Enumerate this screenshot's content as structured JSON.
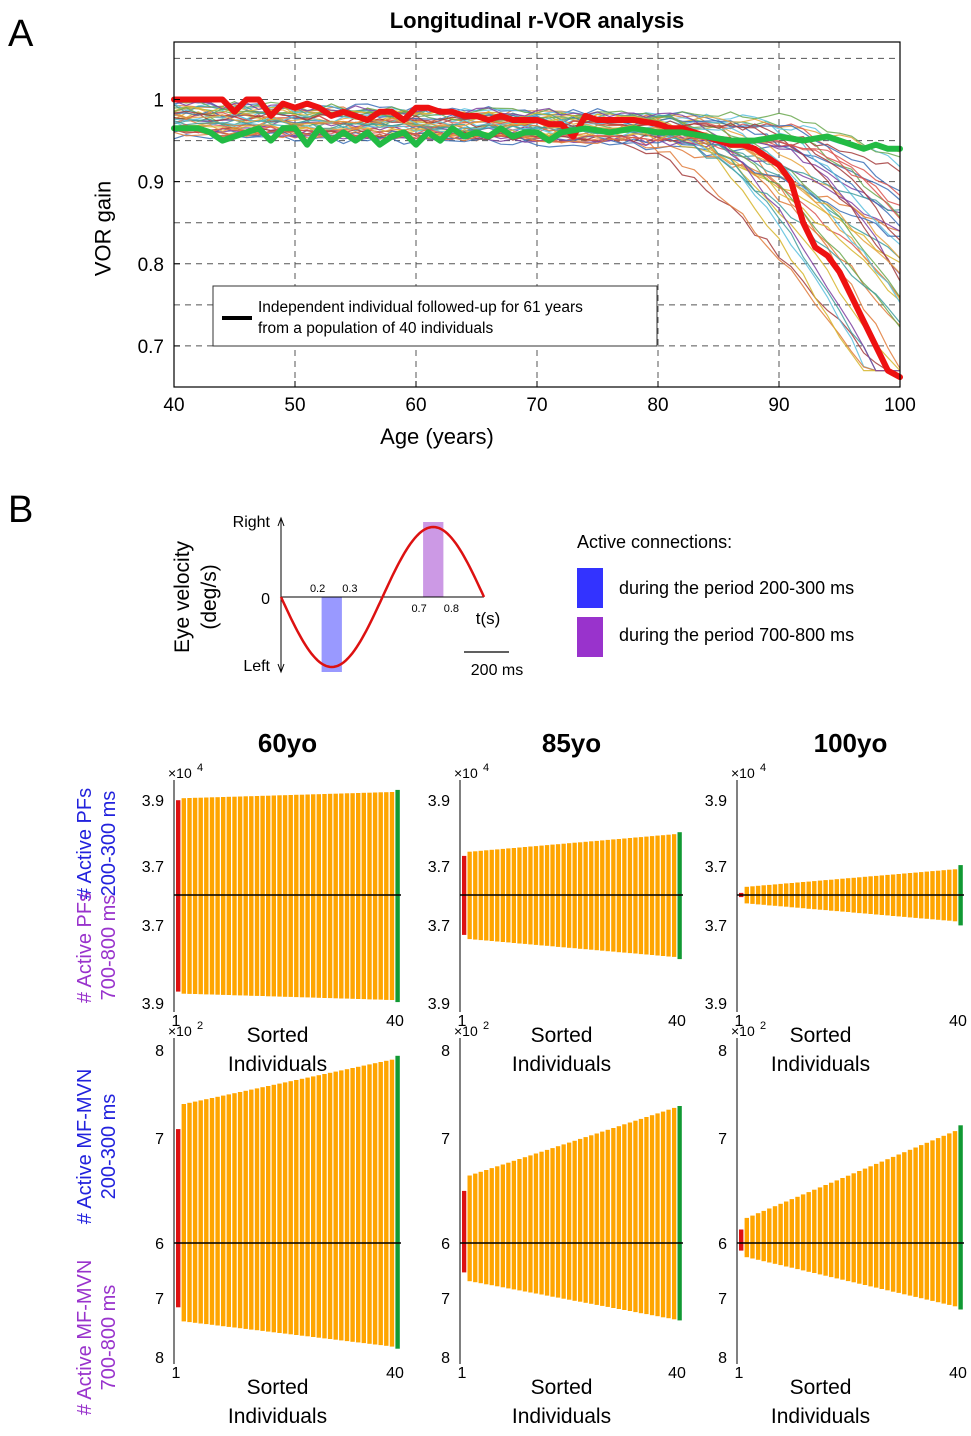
{
  "panel_labels": {
    "a": "A",
    "b": "B"
  },
  "colors": {
    "highlight_red": "#ee1111",
    "highlight_green": "#22bb44",
    "bar_orange": "#ffa500",
    "bar_red": "#dd1111",
    "bar_green": "#119933",
    "wave_red": "#dd1111",
    "window_blue": "#3333ff",
    "window_purple": "#9933cc",
    "label_blue": "#2222dd",
    "label_purple": "#9933cc"
  },
  "chart_data": [
    {
      "id": "vor",
      "type": "line",
      "title": "Longitudinal r-VOR analysis",
      "xlabel": "Age (years)",
      "ylabel": "VOR gain",
      "xlim": [
        40,
        100
      ],
      "ylim": [
        0.65,
        1.07
      ],
      "xticks": [
        40,
        50,
        60,
        70,
        80,
        90,
        100
      ],
      "yticks": [
        0.7,
        0.8,
        0.9,
        1
      ],
      "ytick_labels": [
        "0.7",
        "0.8",
        "0.9",
        "1"
      ],
      "grid": true,
      "background_series_count": 40,
      "legend": {
        "text": "Independent individual followed-up for 61 years\nfrom a population of 40 individuals",
        "position": "lower-left"
      },
      "series": [
        {
          "color": "#ee1111",
          "x": [
            40,
            42,
            44,
            45,
            46,
            47,
            48,
            49,
            50,
            51,
            52,
            53,
            54,
            55,
            56,
            57,
            58,
            59,
            60,
            61,
            62,
            63,
            64,
            65,
            66,
            67,
            68,
            69,
            70,
            71,
            72,
            73,
            74,
            75,
            76,
            78,
            80,
            81,
            82,
            83,
            84,
            85,
            86,
            87,
            88,
            89,
            90,
            91,
            92,
            93,
            94,
            95,
            96,
            97,
            98,
            99,
            100
          ],
          "y": [
            1.0,
            1.0,
            1.0,
            0.985,
            1.0,
            1.0,
            0.98,
            0.995,
            0.99,
            0.995,
            0.99,
            0.98,
            0.985,
            0.98,
            0.975,
            0.985,
            0.985,
            0.975,
            0.99,
            0.99,
            0.985,
            0.985,
            0.98,
            0.98,
            0.975,
            0.98,
            0.975,
            0.975,
            0.975,
            0.97,
            0.97,
            0.955,
            0.98,
            0.975,
            0.975,
            0.975,
            0.97,
            0.965,
            0.965,
            0.96,
            0.955,
            0.95,
            0.945,
            0.945,
            0.94,
            0.93,
            0.92,
            0.9,
            0.85,
            0.82,
            0.81,
            0.79,
            0.76,
            0.73,
            0.7,
            0.67,
            0.662
          ]
        },
        {
          "color": "#22bb44",
          "x": [
            40,
            42,
            43,
            44,
            46,
            47,
            48,
            49,
            50,
            51,
            52,
            53,
            54,
            55,
            56,
            57,
            58,
            59,
            60,
            61,
            62,
            63,
            64,
            65,
            66,
            67,
            68,
            69,
            70,
            71,
            72,
            74,
            76,
            78,
            80,
            82,
            84,
            86,
            88,
            90,
            92,
            94,
            96,
            97,
            98,
            99,
            100
          ],
          "y": [
            0.965,
            0.965,
            0.96,
            0.95,
            0.96,
            0.965,
            0.95,
            0.965,
            0.965,
            0.945,
            0.965,
            0.95,
            0.96,
            0.95,
            0.96,
            0.945,
            0.955,
            0.96,
            0.945,
            0.96,
            0.95,
            0.965,
            0.955,
            0.96,
            0.955,
            0.965,
            0.955,
            0.96,
            0.96,
            0.95,
            0.96,
            0.965,
            0.96,
            0.965,
            0.96,
            0.96,
            0.955,
            0.95,
            0.95,
            0.955,
            0.95,
            0.955,
            0.945,
            0.94,
            0.945,
            0.94,
            0.94
          ]
        }
      ]
    },
    {
      "id": "sine",
      "type": "line",
      "ylabel": "Eye velocity\n(deg/s)",
      "ytick_labels": [
        "Right",
        "0",
        "Left"
      ],
      "xtick_labels": [
        "0.2",
        "0.3",
        "0.7",
        "0.8"
      ],
      "xlabel": "t(s)",
      "scale_bar": "200 ms",
      "windows": [
        [
          0.2,
          0.3
        ],
        [
          0.7,
          0.8
        ]
      ],
      "legend": {
        "title": "Active connections:",
        "items": [
          "during the period 200-300 ms",
          "during the period 700-800 ms"
        ]
      }
    },
    {
      "id": "bars",
      "type": "bar",
      "row_labels": [
        {
          "top": "# Active PFs\n200-300 ms",
          "bottom": "# Active PFs\n700-800 ms"
        },
        {
          "top": "# Active MF-MVN\n200-300 ms",
          "bottom": "# Active MF-MVN\n700-800 ms"
        }
      ],
      "column_titles": [
        "60yo",
        "85yo",
        "100yo"
      ],
      "xlabel": "Sorted\nIndividuals",
      "xtick_labels": [
        "1",
        "40"
      ],
      "n": 40,
      "rows": [
        {
          "exponent_label": "10",
          "exponent": "4",
          "ytick_labels": [
            "3.9",
            "3.7",
            "3.7",
            "3.9"
          ],
          "panels": [
            {
              "up": {
                "first": 0.92,
                "start": 0.94,
                "end": 1.0,
                "last": 1.02
              },
              "down": {
                "first": 0.92,
                "start": 0.94,
                "end": 1.0,
                "last": 1.02
              }
            },
            {
              "up": {
                "first": 0.38,
                "start": 0.42,
                "end": 0.59,
                "last": 0.61
              },
              "down": {
                "first": 0.38,
                "start": 0.42,
                "end": 0.59,
                "last": 0.61
              }
            },
            {
              "up": {
                "first": 0.02,
                "start": 0.08,
                "end": 0.25,
                "last": 0.29
              },
              "down": {
                "first": 0.02,
                "start": 0.08,
                "end": 0.25,
                "last": 0.29
              }
            }
          ]
        },
        {
          "exponent_label": "10",
          "exponent": "2",
          "ytick_labels": [
            "8",
            "7",
            "6",
            "7",
            "8"
          ],
          "panels": [
            {
              "up": {
                "first": 0.59,
                "start": 0.72,
                "end": 0.95,
                "last": 0.97
              },
              "down": {
                "first": 0.59,
                "start": 0.72,
                "end": 0.95,
                "last": 0.97
              }
            },
            {
              "up": {
                "first": 0.27,
                "start": 0.35,
                "end": 0.7,
                "last": 0.71
              },
              "down": {
                "first": 0.27,
                "start": 0.35,
                "end": 0.7,
                "last": 0.71
              }
            },
            {
              "up": {
                "first": 0.07,
                "start": 0.13,
                "end": 0.58,
                "last": 0.61
              },
              "down": {
                "first": 0.07,
                "start": 0.13,
                "end": 0.58,
                "last": 0.61
              }
            }
          ]
        }
      ]
    }
  ]
}
